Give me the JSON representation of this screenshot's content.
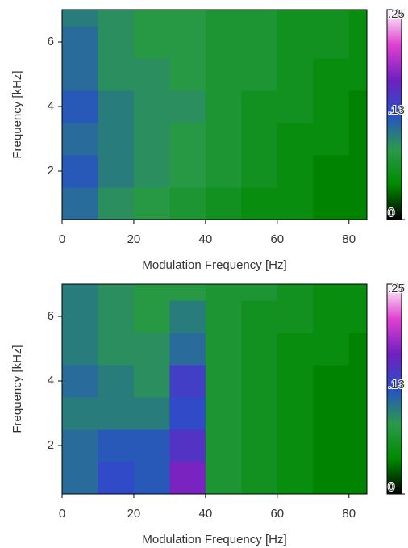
{
  "chart_data": [
    {
      "type": "heatmap",
      "xlabel": "Modulation Frequency [Hz]",
      "ylabel": "Frequency [kHz]",
      "xlim": [
        0,
        85
      ],
      "ylim": [
        0.5,
        7
      ],
      "xticks": [
        0,
        20,
        40,
        60,
        80
      ],
      "yticks": [
        2,
        4,
        6
      ],
      "x_edges": [
        0,
        10,
        20,
        30,
        40,
        50,
        60,
        70,
        80,
        85
      ],
      "y_edges": [
        0.5,
        1.5,
        2.5,
        3.5,
        4.5,
        5.5,
        6.5,
        7
      ],
      "z": [
        [
          0.11,
          0.09,
          0.08,
          0.07,
          0.06,
          0.05,
          0.05,
          0.04,
          0.04
        ],
        [
          0.12,
          0.1,
          0.09,
          0.08,
          0.07,
          0.06,
          0.05,
          0.04,
          0.04
        ],
        [
          0.11,
          0.1,
          0.09,
          0.08,
          0.07,
          0.06,
          0.05,
          0.05,
          0.04
        ],
        [
          0.12,
          0.1,
          0.09,
          0.09,
          0.07,
          0.06,
          0.06,
          0.05,
          0.04
        ],
        [
          0.11,
          0.09,
          0.09,
          0.08,
          0.07,
          0.07,
          0.06,
          0.05,
          0.05
        ],
        [
          0.11,
          0.09,
          0.08,
          0.08,
          0.07,
          0.07,
          0.06,
          0.06,
          0.05
        ],
        [
          0.1,
          0.09,
          0.08,
          0.08,
          0.07,
          0.07,
          0.06,
          0.06,
          0.05
        ]
      ],
      "zlim": [
        0,
        0.25
      ],
      "zticks": [
        {
          "value": 0.25,
          "label": ".25"
        },
        {
          "value": 0.13,
          "label": ".13"
        },
        0
      ],
      "colorscale": [
        "#000000",
        "#008a00",
        "#2a9a4a",
        "#2850c8",
        "#7020c0",
        "#e040d0",
        "#ffffff"
      ]
    },
    {
      "type": "heatmap",
      "xlabel": "Modulation Frequency [Hz]",
      "ylabel": "Frequency [kHz]",
      "xlim": [
        0,
        85
      ],
      "ylim": [
        0.5,
        7
      ],
      "xticks": [
        0,
        20,
        40,
        60,
        80
      ],
      "yticks": [
        2,
        4,
        6
      ],
      "x_edges": [
        0,
        10,
        20,
        30,
        40,
        50,
        60,
        70,
        80,
        85
      ],
      "y_edges": [
        0.5,
        1.5,
        2.5,
        3.5,
        4.5,
        5.5,
        6.5,
        7
      ],
      "z": [
        [
          0.11,
          0.13,
          0.12,
          0.17,
          0.07,
          0.06,
          0.05,
          0.04,
          0.04
        ],
        [
          0.11,
          0.12,
          0.12,
          0.15,
          0.07,
          0.06,
          0.05,
          0.04,
          0.04
        ],
        [
          0.1,
          0.1,
          0.1,
          0.13,
          0.07,
          0.06,
          0.05,
          0.04,
          0.04
        ],
        [
          0.11,
          0.1,
          0.09,
          0.14,
          0.07,
          0.06,
          0.05,
          0.04,
          0.04
        ],
        [
          0.1,
          0.09,
          0.09,
          0.11,
          0.07,
          0.06,
          0.05,
          0.05,
          0.04
        ],
        [
          0.1,
          0.09,
          0.08,
          0.1,
          0.07,
          0.06,
          0.06,
          0.05,
          0.05
        ],
        [
          0.1,
          0.09,
          0.08,
          0.08,
          0.07,
          0.07,
          0.06,
          0.05,
          0.05
        ]
      ],
      "zlim": [
        0,
        0.25
      ],
      "zticks": [
        {
          "value": 0.25,
          "label": ".25"
        },
        {
          "value": 0.13,
          "label": ".13"
        },
        0
      ],
      "colorscale": [
        "#000000",
        "#008a00",
        "#2a9a4a",
        "#2850c8",
        "#7020c0",
        "#e040d0",
        "#ffffff"
      ]
    }
  ]
}
